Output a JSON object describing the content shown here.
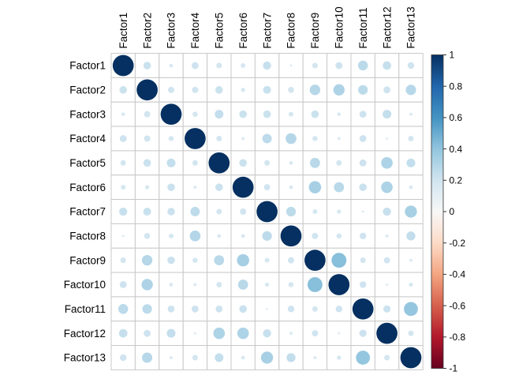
{
  "chart_data": {
    "type": "heatmap",
    "subtype": "correlation-circle-matrix",
    "title": "",
    "xlabel": "",
    "ylabel": "",
    "categories": [
      "Factor1",
      "Factor2",
      "Factor3",
      "Factor4",
      "Factor5",
      "Factor6",
      "Factor7",
      "Factor8",
      "Factor9",
      "Factor10",
      "Factor11",
      "Factor12",
      "Factor13"
    ],
    "matrix": [
      [
        1.0,
        0.13,
        0.03,
        0.11,
        0.07,
        0.05,
        0.15,
        0.01,
        0.07,
        0.11,
        0.22,
        0.16,
        0.1
      ],
      [
        0.13,
        1.0,
        0.09,
        0.09,
        0.13,
        0.04,
        0.14,
        0.08,
        0.25,
        0.29,
        0.21,
        0.11,
        0.24
      ],
      [
        0.03,
        0.09,
        1.0,
        0.06,
        0.17,
        0.13,
        0.13,
        0.05,
        0.13,
        0.03,
        0.11,
        0.17,
        0.02
      ],
      [
        0.11,
        0.09,
        0.06,
        1.0,
        0.07,
        0.02,
        0.2,
        0.26,
        0.06,
        0.02,
        0.11,
        0.01,
        0.07
      ],
      [
        0.07,
        0.13,
        0.17,
        0.07,
        1.0,
        0.13,
        0.07,
        0.03,
        0.23,
        0.07,
        0.11,
        0.3,
        0.17
      ],
      [
        0.05,
        0.04,
        0.13,
        0.02,
        0.13,
        1.0,
        0.09,
        0.03,
        0.34,
        0.23,
        0.13,
        0.3,
        0.03
      ],
      [
        0.15,
        0.14,
        0.13,
        0.2,
        0.07,
        0.09,
        1.0,
        0.21,
        0.05,
        0.04,
        0.01,
        0.15,
        0.33
      ],
      [
        0.01,
        0.08,
        0.05,
        0.26,
        0.03,
        0.03,
        0.21,
        1.0,
        0.09,
        0.06,
        0.1,
        0.02,
        0.18
      ],
      [
        0.07,
        0.25,
        0.13,
        0.06,
        0.23,
        0.34,
        0.05,
        0.09,
        1.0,
        0.5,
        0.07,
        0.09,
        0.02
      ],
      [
        0.11,
        0.29,
        0.03,
        0.02,
        0.07,
        0.23,
        0.04,
        0.06,
        0.5,
        1.0,
        0.1,
        0.01,
        0.04
      ],
      [
        0.22,
        0.21,
        0.11,
        0.11,
        0.11,
        0.13,
        0.01,
        0.1,
        0.07,
        0.1,
        1.0,
        0.12,
        0.44
      ],
      [
        0.16,
        0.11,
        0.17,
        0.01,
        0.3,
        0.3,
        0.15,
        0.02,
        0.09,
        0.01,
        0.12,
        1.0,
        0.07
      ],
      [
        0.1,
        0.24,
        0.02,
        0.07,
        0.17,
        0.03,
        0.33,
        0.18,
        0.02,
        0.04,
        0.44,
        0.07,
        1.0
      ]
    ],
    "value_range": [
      -1,
      1
    ],
    "grid_on": true,
    "legend": {
      "position": "right",
      "tick_labels": [
        "1",
        "0.8",
        "0.6",
        "0.4",
        "0.2",
        "0",
        "-0.2",
        "-0.4",
        "-0.6",
        "-0.8",
        "-1"
      ],
      "tick_values": [
        1,
        0.8,
        0.6,
        0.4,
        0.2,
        0,
        -0.2,
        -0.4,
        -0.6,
        -0.8,
        -1
      ]
    },
    "palette": {
      "name": "RdBu",
      "stops_low_to_high": [
        "#67001F",
        "#B2182B",
        "#D6604D",
        "#F4A582",
        "#FDDBC7",
        "#F7F7F7",
        "#D1E5F0",
        "#92C5DE",
        "#4393C3",
        "#2166AC",
        "#053061"
      ]
    },
    "colors": {
      "diagonal_circle": "#053061",
      "grid_line": "#c8c8c8",
      "text": "#000000",
      "background": "#ffffff"
    }
  }
}
